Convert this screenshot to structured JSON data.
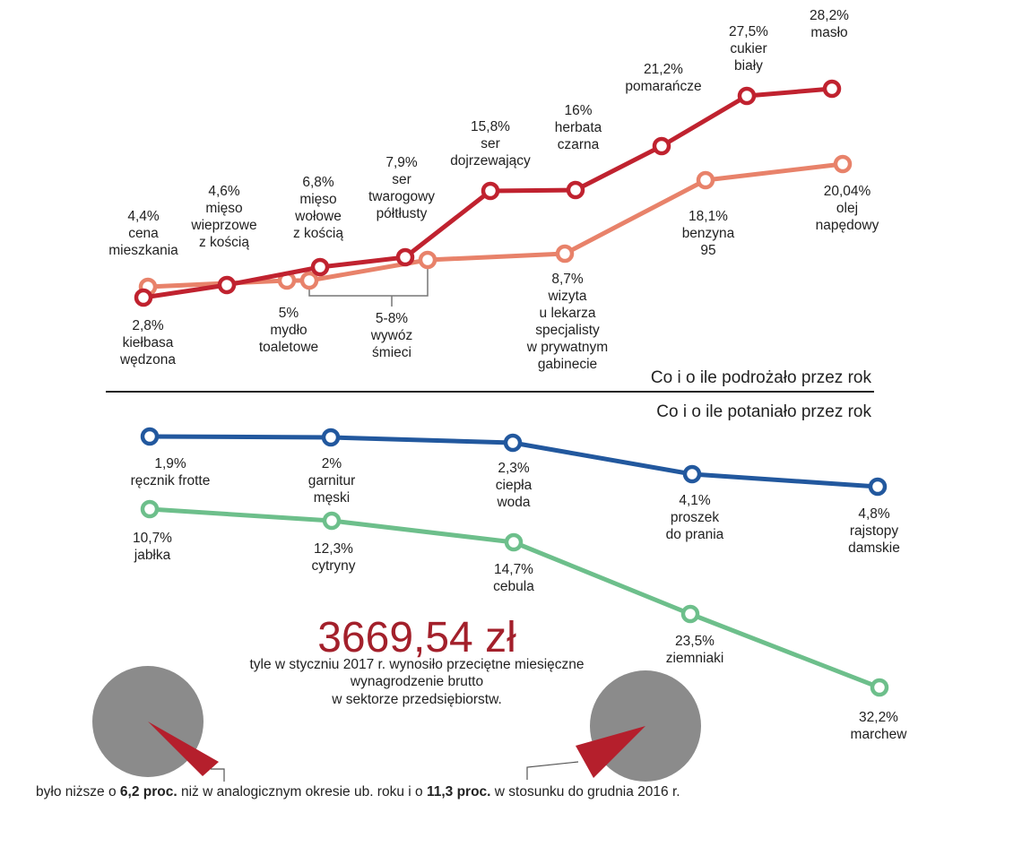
{
  "rise": {
    "caption": "Co i o ile podrożało przez rok",
    "main": [
      {
        "value": "2,8%",
        "label": [
          "kiełbasa",
          "wędzona"
        ]
      },
      {
        "value": "4,6%",
        "label": [
          "mięso",
          "wieprzowe",
          "z kością"
        ]
      },
      {
        "value": "6,8%",
        "label": [
          "mięso",
          "wołowe",
          "z kością"
        ]
      },
      {
        "value": "7,9%",
        "label": [
          "ser",
          "twarogowy",
          "półtłusty"
        ]
      },
      {
        "value": "15,8%",
        "label": [
          "ser",
          "dojrzewający"
        ]
      },
      {
        "value": "16%",
        "label": [
          "herbata",
          "czarna"
        ]
      },
      {
        "value": "21,2%",
        "label": [
          "pomarańcze"
        ]
      },
      {
        "value": "27,5%",
        "label": [
          "cukier",
          "biały"
        ]
      },
      {
        "value": "28,2%",
        "label": [
          "masło"
        ]
      }
    ],
    "secondary": [
      {
        "value": "4,4%",
        "label": [
          "cena",
          "mieszkania"
        ]
      },
      {
        "value": "5%",
        "label": [
          "mydło",
          "toaletowe"
        ]
      },
      {
        "value": "5-8%",
        "label": [
          "wywóz",
          "śmieci"
        ]
      },
      {
        "value": "8,7%",
        "label": [
          "wizyta",
          "u lekarza",
          "specjalisty",
          "w prywatnym",
          "gabinecie"
        ]
      },
      {
        "value": "18,1%",
        "label": [
          "benzyna",
          "95"
        ]
      },
      {
        "value": "20,04%",
        "label": [
          "olej",
          "napędowy"
        ]
      }
    ]
  },
  "fall": {
    "caption": "Co i o ile potaniało przez rok",
    "main": [
      {
        "value": "1,9%",
        "label": [
          "ręcznik frotte"
        ]
      },
      {
        "value": "2%",
        "label": [
          "garnitur",
          "męski"
        ]
      },
      {
        "value": "2,3%",
        "label": [
          "ciepła",
          "woda"
        ]
      },
      {
        "value": "4,1%",
        "label": [
          "proszek",
          "do prania"
        ]
      },
      {
        "value": "4,8%",
        "label": [
          "rajstopy",
          "damskie"
        ]
      }
    ],
    "secondary": [
      {
        "value": "10,7%",
        "label": [
          "jabłka"
        ]
      },
      {
        "value": "12,3%",
        "label": [
          "cytryny"
        ]
      },
      {
        "value": "14,7%",
        "label": [
          "cebula"
        ]
      },
      {
        "value": "23,5%",
        "label": [
          "ziemniaki"
        ]
      },
      {
        "value": "32,2%",
        "label": [
          "marchew"
        ]
      }
    ]
  },
  "salary": {
    "amount": "3669,54 zł",
    "description": [
      "tyle w styczniu 2017 r. wynosiło przeciętne miesięczne",
      "wynagrodzenie brutto",
      "w sektorze przedsiębiorstw."
    ],
    "footnote": [
      "było niższe o ",
      "6,2 proc.",
      " niż w analogicznym okresie ub. roku i o ",
      "11,3 proc.",
      " w stosunku do grudnia 2016 r."
    ]
  }
}
